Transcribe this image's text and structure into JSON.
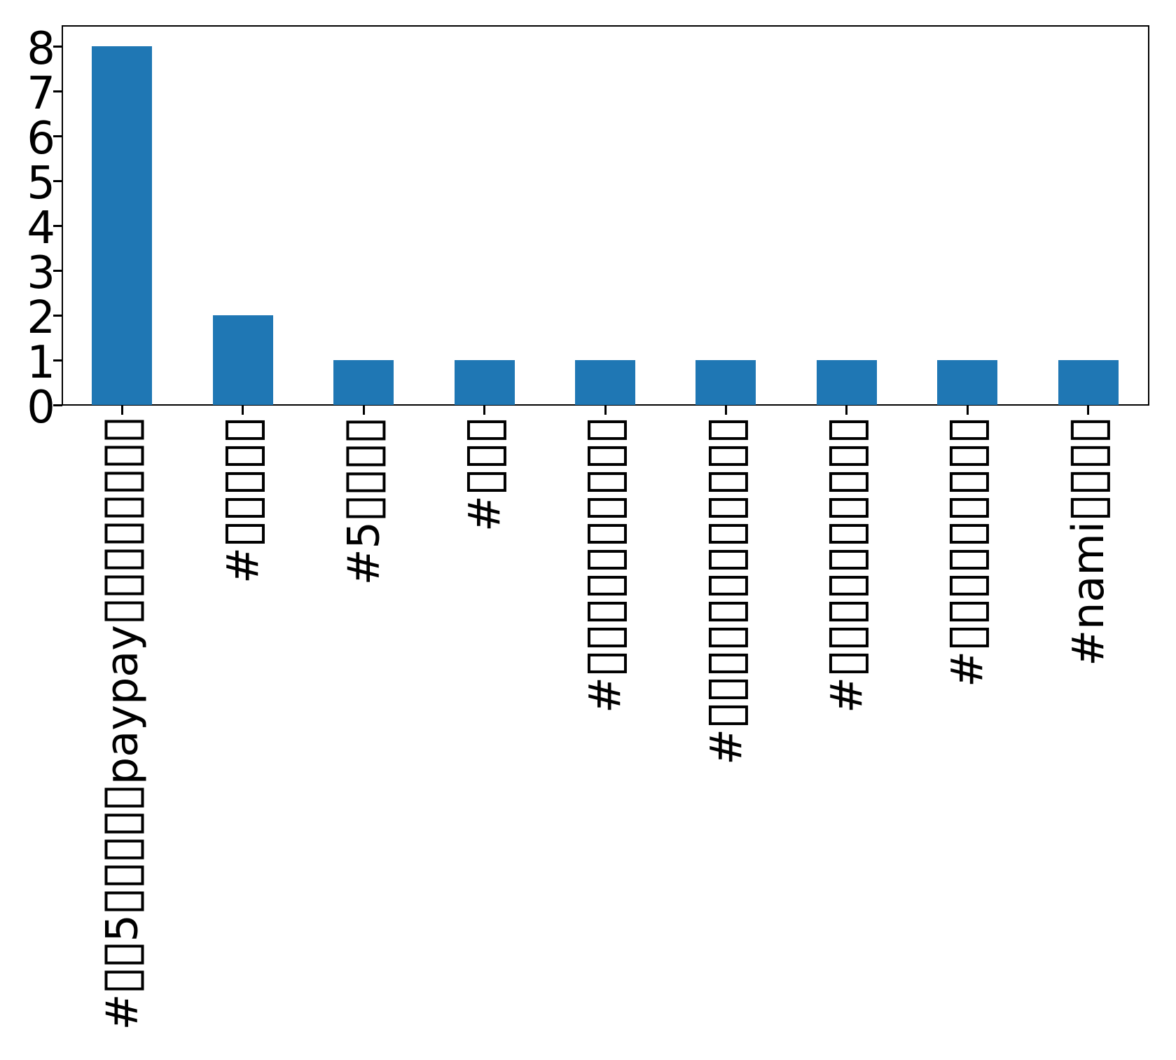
{
  "chart_data": {
    "type": "bar",
    "title": "",
    "xlabel": "",
    "ylabel": "",
    "categories": [
      "#□□5□□□□□paypay□□□□□□□□",
      "#□□□□□",
      "#5□□□□",
      "#□□□",
      "#□□□□□□□□□□",
      "#□□□□□□□□□□□□",
      "#□□□□□□□□□□",
      "#□□□□□□□□□",
      "#nami□□□□"
    ],
    "values": [
      8,
      2,
      1,
      1,
      1,
      1,
      1,
      1,
      1
    ],
    "yticks": [
      0,
      1,
      2,
      3,
      4,
      5,
      6,
      7,
      8
    ],
    "ylim": [
      0,
      8.45
    ],
    "grid": false,
    "legend": "none",
    "bar_color": "#1f77b4",
    "missing_glyph_placeholder": "□",
    "x_tick_label_rotation_deg": 90
  }
}
